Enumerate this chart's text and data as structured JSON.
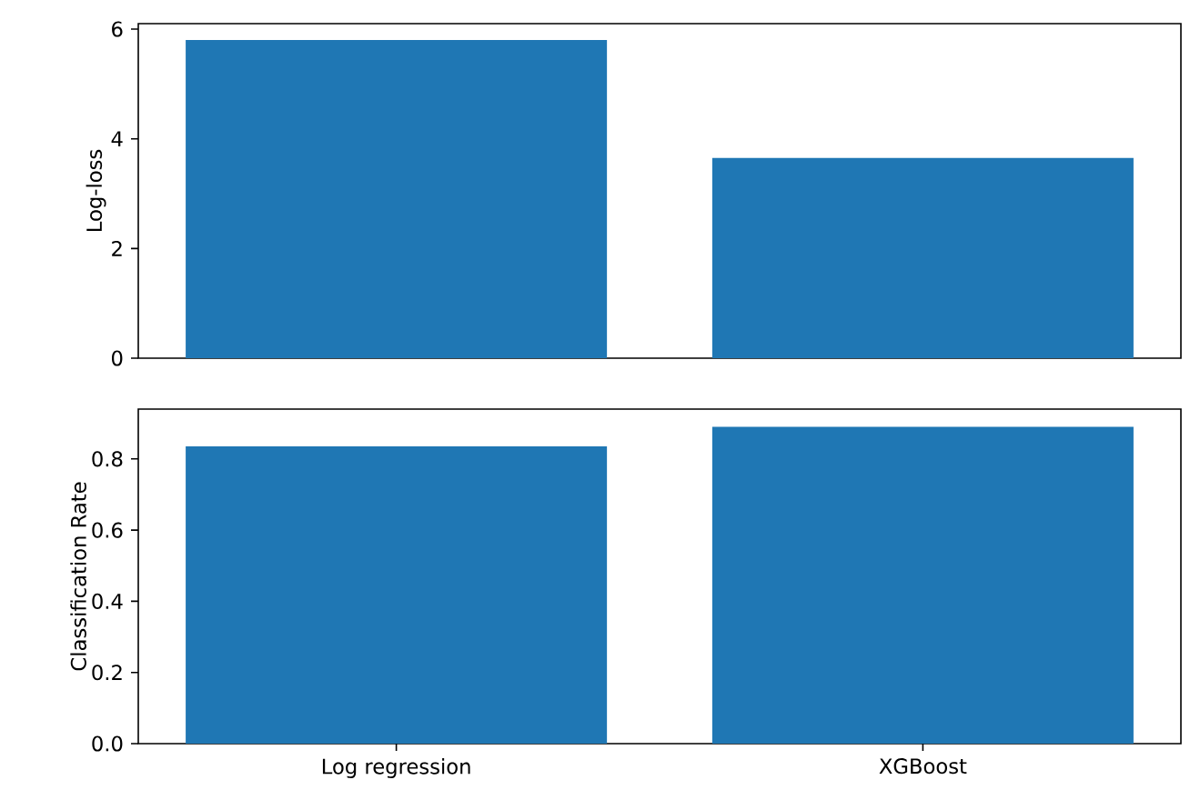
{
  "chart_data": [
    {
      "type": "bar",
      "ylabel": "Log-loss",
      "categories": [
        null,
        null
      ],
      "values": [
        5.8,
        3.65
      ],
      "color": "#1f77b4",
      "ylim": [
        0,
        6.1
      ],
      "yticks": [
        0,
        2,
        4,
        6
      ],
      "tick_labels": "y"
    },
    {
      "type": "bar",
      "ylabel": "Classification Rate",
      "categories": [
        "Log regression",
        "XGBoost"
      ],
      "values": [
        0.835,
        0.89
      ],
      "color": "#1f77b4",
      "ylim": [
        0,
        0.94
      ],
      "yticks": [
        {
          "value": 0,
          "label": "0.0"
        },
        0.2,
        0.4,
        0.6,
        0.8
      ]
    }
  ]
}
